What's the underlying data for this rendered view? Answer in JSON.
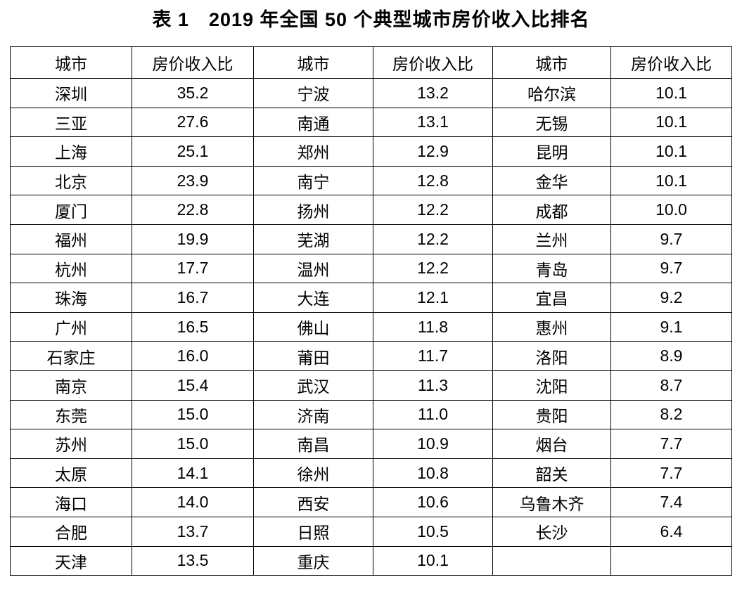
{
  "title": "表 1　2019 年全国 50 个典型城市房价收入比排名",
  "table": {
    "column_headers": [
      "城市",
      "房价收入比",
      "城市",
      "房价收入比",
      "城市",
      "房价收入比"
    ],
    "rows": [
      [
        "深圳",
        "35.2",
        "宁波",
        "13.2",
        "哈尔滨",
        "10.1"
      ],
      [
        "三亚",
        "27.6",
        "南通",
        "13.1",
        "无锡",
        "10.1"
      ],
      [
        "上海",
        "25.1",
        "郑州",
        "12.9",
        "昆明",
        "10.1"
      ],
      [
        "北京",
        "23.9",
        "南宁",
        "12.8",
        "金华",
        "10.1"
      ],
      [
        "厦门",
        "22.8",
        "扬州",
        "12.2",
        "成都",
        "10.0"
      ],
      [
        "福州",
        "19.9",
        "芜湖",
        "12.2",
        "兰州",
        "9.7"
      ],
      [
        "杭州",
        "17.7",
        "温州",
        "12.2",
        "青岛",
        "9.7"
      ],
      [
        "珠海",
        "16.7",
        "大连",
        "12.1",
        "宜昌",
        "9.2"
      ],
      [
        "广州",
        "16.5",
        "佛山",
        "11.8",
        "惠州",
        "9.1"
      ],
      [
        "石家庄",
        "16.0",
        "莆田",
        "11.7",
        "洛阳",
        "8.9"
      ],
      [
        "南京",
        "15.4",
        "武汉",
        "11.3",
        "沈阳",
        "8.7"
      ],
      [
        "东莞",
        "15.0",
        "济南",
        "11.0",
        "贵阳",
        "8.2"
      ],
      [
        "苏州",
        "15.0",
        "南昌",
        "10.9",
        "烟台",
        "7.7"
      ],
      [
        "太原",
        "14.1",
        "徐州",
        "10.8",
        "韶关",
        "7.7"
      ],
      [
        "海口",
        "14.0",
        "西安",
        "10.6",
        "乌鲁木齐",
        "7.4"
      ],
      [
        "合肥",
        "13.7",
        "日照",
        "10.5",
        "长沙",
        "6.4"
      ],
      [
        "天津",
        "13.5",
        "重庆",
        "10.1",
        "",
        ""
      ]
    ]
  },
  "colors": {
    "text": "#000000",
    "border": "#000000",
    "background": "#ffffff"
  }
}
